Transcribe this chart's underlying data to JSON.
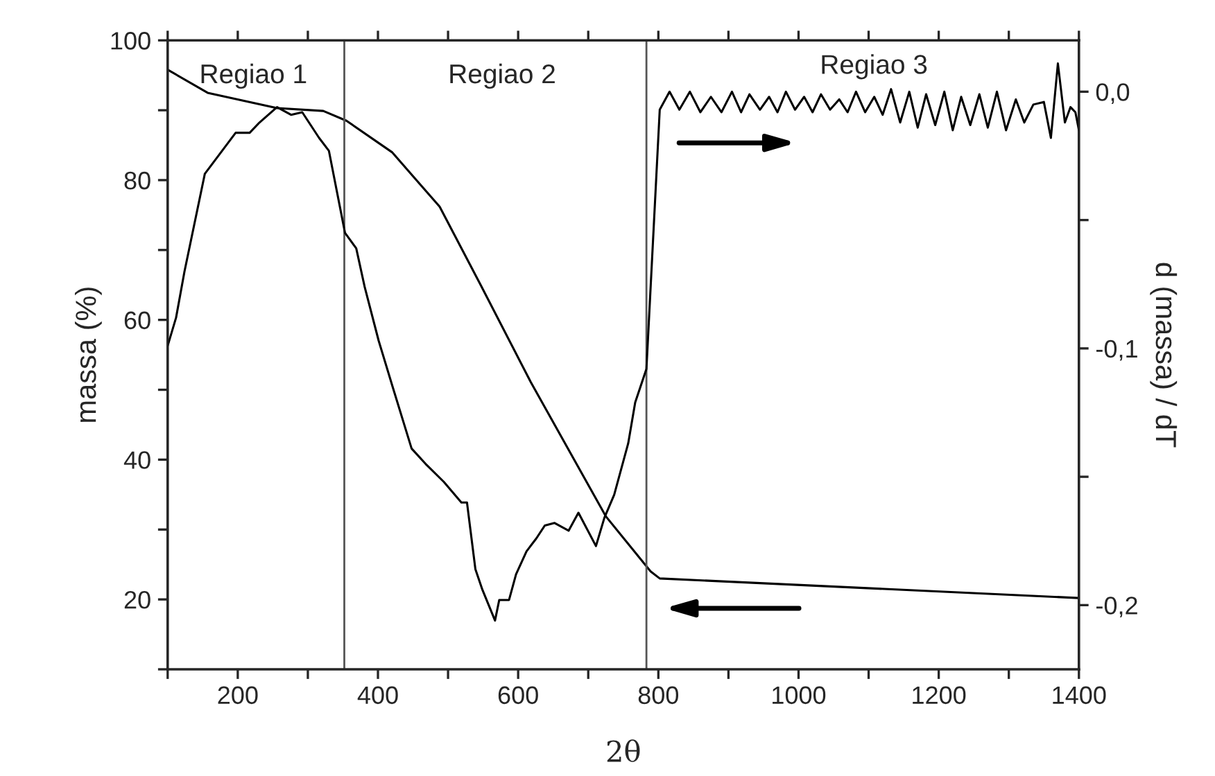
{
  "chart_data": {
    "type": "line",
    "xlabel": "2θ",
    "ylabel": "massa (%)",
    "y2label": "d (massa) / dT",
    "xlim": [
      100,
      1400
    ],
    "ylim": [
      10,
      100
    ],
    "y2lim": [
      -0.225,
      0.02
    ],
    "xticks": [
      {
        "value": 100,
        "label": null
      },
      200,
      {
        "value": 300,
        "label": null
      },
      400,
      {
        "value": 500,
        "label": null
      },
      600,
      {
        "value": 700,
        "label": null
      },
      800,
      {
        "value": 900,
        "label": null
      },
      1000,
      {
        "value": 1100,
        "label": null
      },
      1200,
      {
        "value": 1300,
        "label": null
      },
      1400
    ],
    "yticks": [
      {
        "value": 10,
        "label": null
      },
      20,
      {
        "value": 30,
        "label": null
      },
      40,
      {
        "value": 50,
        "label": null
      },
      60,
      {
        "value": 70,
        "label": null
      },
      80,
      {
        "value": 90,
        "label": null
      },
      100
    ],
    "y2ticks": [
      {
        "value": 0,
        "label": "0,0"
      },
      {
        "value": -0.05,
        "label": null
      },
      {
        "value": -0.1,
        "label": "-0,1"
      },
      {
        "value": -0.15,
        "label": null
      },
      {
        "value": -0.2,
        "label": "-0,2"
      }
    ],
    "grid": false,
    "legend": false,
    "marker": "none",
    "line_style": "solid",
    "series": [
      {
        "color": "#000000",
        "x": [
          100,
          157,
          256,
          322,
          355,
          420,
          488,
          547,
          618,
          725,
          789,
          802,
          1400
        ],
        "values": [
          95.8,
          92.5,
          90.3,
          89.9,
          88.5,
          84.0,
          76.2,
          64.9,
          51.1,
          31.9,
          24.0,
          23.0,
          20.2
        ]
      },
      {
        "color": "#000000",
        "axis": "y2",
        "x": [
          100,
          112,
          124,
          153,
          197,
          217,
          231,
          256,
          276,
          292,
          316,
          330,
          353,
          369,
          381,
          401,
          421,
          448,
          468,
          494,
          519,
          527,
          539,
          549,
          567,
          573,
          587,
          597,
          612,
          626,
          638,
          652,
          672,
          686,
          711,
          723,
          737,
          757,
          767,
          783,
          802,
          816,
          830,
          845,
          860,
          875,
          890,
          905,
          918,
          930,
          945,
          958,
          970,
          982,
          995,
          1008,
          1020,
          1032,
          1045,
          1058,
          1070,
          1082,
          1095,
          1108,
          1120,
          1132,
          1145,
          1158,
          1170,
          1182,
          1195,
          1208,
          1220,
          1232,
          1245,
          1258,
          1270,
          1283,
          1296,
          1310,
          1322,
          1335,
          1350,
          1360,
          1370,
          1380,
          1388,
          1395,
          1400
        ],
        "values": [
          -0.099,
          -0.088,
          -0.07,
          -0.032,
          -0.016,
          -0.016,
          -0.012,
          -0.006,
          -0.009,
          -0.008,
          -0.018,
          -0.023,
          -0.055,
          -0.061,
          -0.076,
          -0.097,
          -0.115,
          -0.139,
          -0.145,
          -0.152,
          -0.16,
          -0.16,
          -0.186,
          -0.194,
          -0.206,
          -0.198,
          -0.198,
          -0.188,
          -0.179,
          -0.174,
          -0.169,
          -0.168,
          -0.171,
          -0.164,
          -0.177,
          -0.166,
          -0.157,
          -0.137,
          -0.121,
          -0.108,
          -0.007,
          0.0,
          -0.007,
          0.0,
          -0.008,
          -0.002,
          -0.008,
          0.0,
          -0.008,
          -0.001,
          -0.007,
          -0.002,
          -0.008,
          0.0,
          -0.007,
          -0.002,
          -0.008,
          -0.001,
          -0.007,
          -0.003,
          -0.008,
          0.0,
          -0.008,
          -0.002,
          -0.009,
          0.001,
          -0.012,
          0.0,
          -0.014,
          -0.001,
          -0.013,
          0.0,
          -0.015,
          -0.002,
          -0.013,
          -0.001,
          -0.014,
          0.0,
          -0.015,
          -0.003,
          -0.012,
          -0.005,
          -0.004,
          -0.018,
          0.011,
          -0.012,
          -0.006,
          -0.008,
          -0.015
        ]
      }
    ],
    "ref_lines": [
      {
        "axis": "x",
        "value": 352,
        "color": "#555555"
      },
      {
        "axis": "x",
        "value": 783,
        "color": "#555555"
      }
    ],
    "annotations": [
      "Regiao 1",
      "Regiao 2",
      "Regiao 3"
    ]
  }
}
